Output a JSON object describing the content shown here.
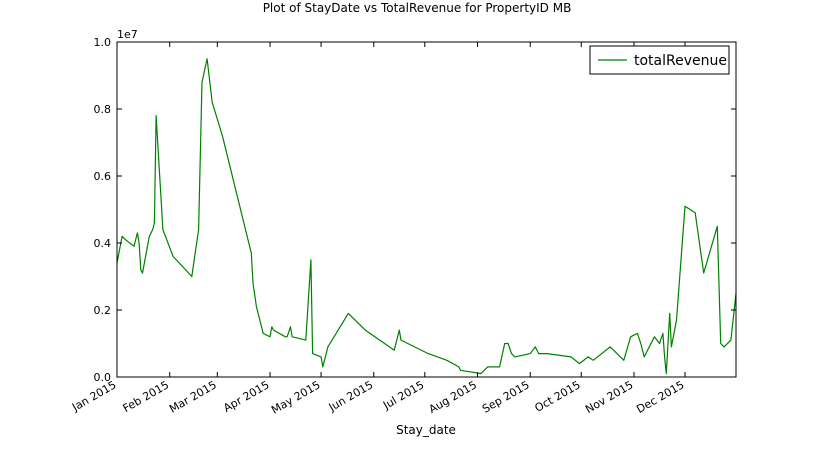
{
  "chart_data": {
    "type": "line",
    "title": "Plot of StayDate vs TotalRevenue for PropertyID MB",
    "xlabel": "Stay_date",
    "ylabel": "",
    "y_scale_label": "1e7",
    "xlim": [
      "2015-01-01",
      "2015-12-31"
    ],
    "ylim": [
      0,
      1.0
    ],
    "y_ticks": [
      "0.0",
      "0.2",
      "0.4",
      "0.6",
      "0.8",
      "1.0"
    ],
    "x_tick_labels": [
      "Jan 2015",
      "Feb 2015",
      "Mar 2015",
      "Apr 2015",
      "May 2015",
      "Jun 2015",
      "Jul 2015",
      "Aug 2015",
      "Sep 2015",
      "Oct 2015",
      "Nov 2015",
      "Dec 2015"
    ],
    "x_tick_dates": [
      "2015-01-01",
      "2015-02-01",
      "2015-03-01",
      "2015-04-01",
      "2015-05-01",
      "2015-06-01",
      "2015-07-01",
      "2015-08-01",
      "2015-09-01",
      "2015-10-01",
      "2015-11-01",
      "2015-12-01"
    ],
    "grid": false,
    "legend_position": "top-right",
    "series": [
      {
        "name": "totalRevenue",
        "color": "#008000",
        "x": [
          "2015-01-01",
          "2015-01-04",
          "2015-01-06",
          "2015-01-11",
          "2015-01-13",
          "2015-01-14",
          "2015-01-15",
          "2015-01-16",
          "2015-01-20",
          "2015-01-22",
          "2015-01-23",
          "2015-01-24",
          "2015-01-28",
          "2015-02-03",
          "2015-02-14",
          "2015-02-18",
          "2015-02-20",
          "2015-02-23",
          "2015-02-26",
          "2015-03-04",
          "2015-03-21",
          "2015-03-22",
          "2015-03-24",
          "2015-03-28",
          "2015-04-01",
          "2015-04-02",
          "2015-04-03",
          "2015-04-10",
          "2015-04-11",
          "2015-04-13",
          "2015-04-14",
          "2015-04-22",
          "2015-04-25",
          "2015-04-26",
          "2015-05-01",
          "2015-05-02",
          "2015-05-05",
          "2015-05-17",
          "2015-05-27",
          "2015-06-13",
          "2015-06-16",
          "2015-06-17",
          "2015-07-03",
          "2015-07-14",
          "2015-07-21",
          "2015-07-22",
          "2015-08-03",
          "2015-08-07",
          "2015-08-14",
          "2015-08-17",
          "2015-08-19",
          "2015-08-21",
          "2015-08-23",
          "2015-09-01",
          "2015-09-04",
          "2015-09-06",
          "2015-09-11",
          "2015-09-25",
          "2015-09-30",
          "2015-10-05",
          "2015-10-08",
          "2015-10-18",
          "2015-10-20",
          "2015-10-26",
          "2015-10-30",
          "2015-11-03",
          "2015-11-05",
          "2015-11-07",
          "2015-11-13",
          "2015-11-16",
          "2015-11-18",
          "2015-11-19",
          "2015-11-20",
          "2015-11-22",
          "2015-11-23",
          "2015-11-26",
          "2015-12-01",
          "2015-12-07",
          "2015-12-12",
          "2015-12-20",
          "2015-12-22",
          "2015-12-24",
          "2015-12-28",
          "2015-12-31"
        ],
        "y": [
          0.34,
          0.42,
          0.41,
          0.39,
          0.43,
          0.4,
          0.32,
          0.31,
          0.42,
          0.44,
          0.46,
          0.78,
          0.44,
          0.36,
          0.3,
          0.44,
          0.88,
          0.95,
          0.82,
          0.72,
          0.37,
          0.28,
          0.21,
          0.13,
          0.12,
          0.15,
          0.14,
          0.12,
          0.12,
          0.15,
          0.12,
          0.11,
          0.35,
          0.07,
          0.06,
          0.03,
          0.09,
          0.19,
          0.14,
          0.08,
          0.14,
          0.11,
          0.07,
          0.05,
          0.03,
          0.02,
          0.01,
          0.03,
          0.03,
          0.1,
          0.1,
          0.07,
          0.06,
          0.07,
          0.09,
          0.07,
          0.07,
          0.06,
          0.04,
          0.06,
          0.05,
          0.09,
          0.08,
          0.05,
          0.12,
          0.13,
          0.1,
          0.06,
          0.12,
          0.1,
          0.13,
          0.06,
          0.01,
          0.19,
          0.09,
          0.17,
          0.51,
          0.49,
          0.31,
          0.45,
          0.1,
          0.09,
          0.11,
          0.25
        ]
      }
    ]
  }
}
